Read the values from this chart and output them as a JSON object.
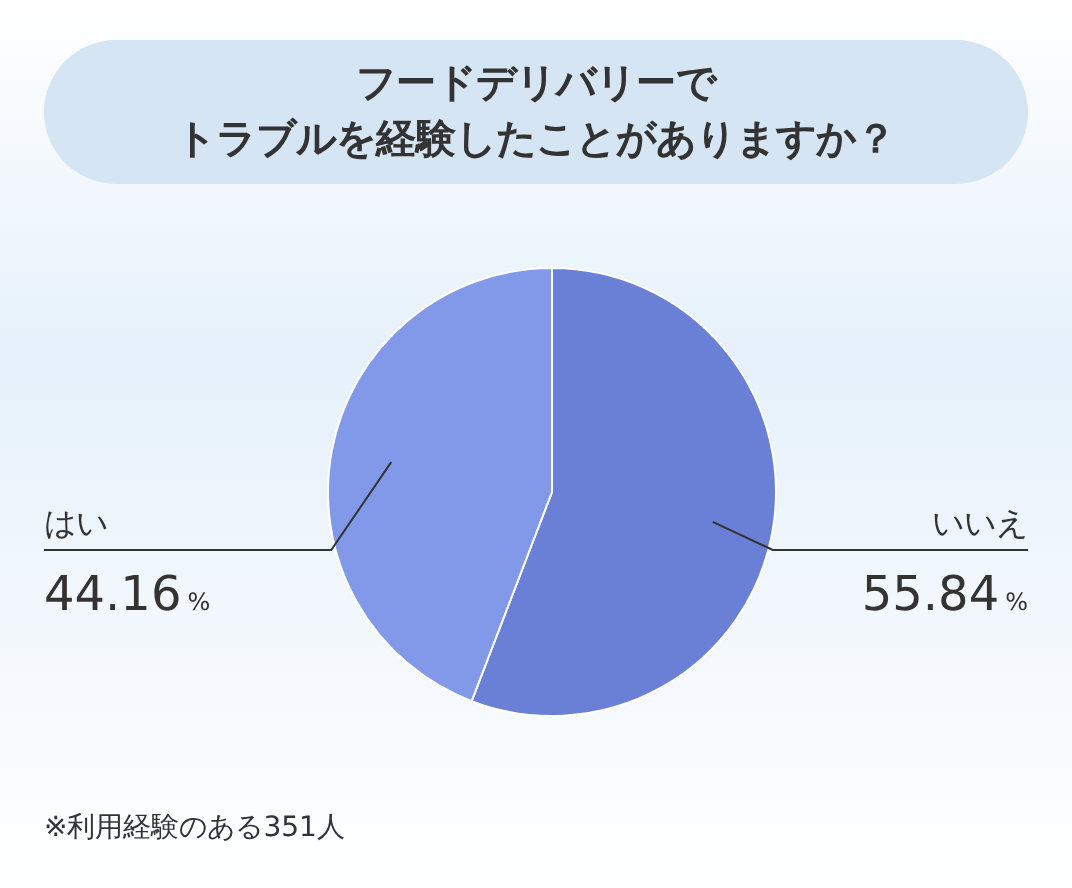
{
  "chart_data": {
    "type": "pie",
    "title": "フードデリバリーで",
    "subtitle": "トラブルを経験したことがありますか？",
    "categories": [
      "いいえ",
      "はい"
    ],
    "values": [
      55.84,
      44.16
    ],
    "colors": [
      "#6a80d6",
      "#8299ea"
    ],
    "value_labels": [
      "55.84%",
      "44.16%"
    ],
    "annotations": [
      "※利用経験のある351人"
    ]
  }
}
